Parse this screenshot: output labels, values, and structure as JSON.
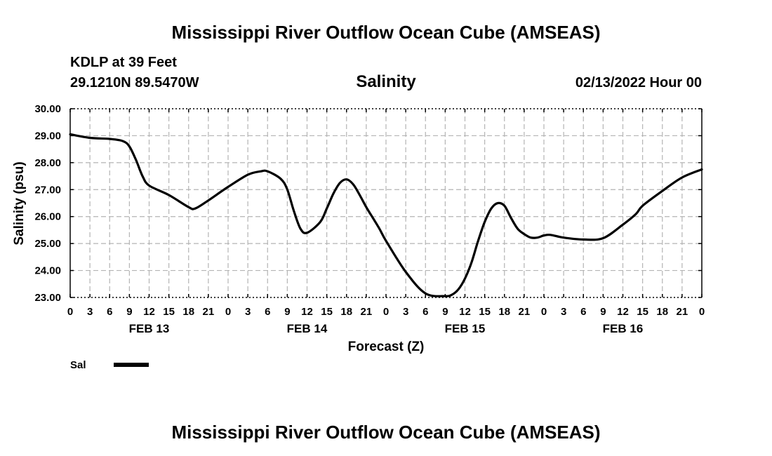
{
  "header": {
    "title": "Mississippi River Outflow Ocean Cube (AMSEAS)",
    "station": "KDLP at 39 Feet",
    "coords": "29.1210N  89.5470W",
    "parameter": "Salinity",
    "datetime": "02/13/2022 Hour 00"
  },
  "footer": {
    "title": "Mississippi River Outflow Ocean Cube (AMSEAS)"
  },
  "legend": {
    "label": "Sal"
  },
  "colors": {
    "line": "#000000",
    "grid": "#b4b4b4"
  },
  "chart_data": {
    "type": "line",
    "title": "Salinity",
    "xlabel": "Forecast (Z)",
    "ylabel": "Salinity (psu)",
    "xlim": [
      0,
      96
    ],
    "ylim": [
      23.0,
      30.0
    ],
    "y_ticks": [
      "23.00",
      "24.00",
      "25.00",
      "26.00",
      "27.00",
      "28.00",
      "29.00",
      "30.00"
    ],
    "x_ticks": [
      "0",
      "3",
      "6",
      "9",
      "12",
      "15",
      "18",
      "21",
      "0",
      "3",
      "6",
      "9",
      "12",
      "15",
      "18",
      "21",
      "0",
      "3",
      "6",
      "9",
      "12",
      "15",
      "18",
      "21",
      "0",
      "3",
      "6",
      "9",
      "12",
      "15",
      "18",
      "21",
      "0"
    ],
    "day_labels": [
      {
        "label": "FEB 13",
        "hour": 12
      },
      {
        "label": "FEB 14",
        "hour": 36
      },
      {
        "label": "FEB 15",
        "hour": 60
      },
      {
        "label": "FEB 16",
        "hour": 84
      }
    ],
    "legend_position": "bottom-left",
    "grid": true,
    "series": [
      {
        "name": "Sal",
        "x": [
          0,
          3,
          6,
          8,
          9,
          10,
          11,
          12,
          15,
          18,
          19,
          21,
          24,
          27,
          29,
          30,
          32,
          33,
          34,
          35,
          36,
          38,
          39,
          40,
          41,
          42,
          43,
          44,
          45,
          46,
          47,
          48,
          51,
          54,
          57,
          58,
          59,
          60,
          61,
          62,
          63,
          64,
          65,
          66,
          67,
          68,
          69,
          70,
          71,
          72,
          73,
          75,
          78,
          81,
          84,
          86,
          87,
          90,
          93,
          96
        ],
        "y": [
          29.05,
          28.92,
          28.88,
          28.8,
          28.6,
          28.1,
          27.5,
          27.15,
          26.8,
          26.35,
          26.3,
          26.6,
          27.1,
          27.55,
          27.68,
          27.68,
          27.4,
          27.0,
          26.2,
          25.55,
          25.4,
          25.8,
          26.3,
          26.85,
          27.25,
          27.38,
          27.2,
          26.8,
          26.35,
          25.95,
          25.55,
          25.1,
          23.95,
          23.15,
          23.05,
          23.1,
          23.3,
          23.7,
          24.3,
          25.1,
          25.8,
          26.3,
          26.5,
          26.4,
          25.95,
          25.55,
          25.35,
          25.22,
          25.22,
          25.3,
          25.32,
          25.22,
          25.15,
          25.2,
          25.7,
          26.1,
          26.4,
          26.95,
          27.45,
          27.75
        ]
      }
    ]
  }
}
